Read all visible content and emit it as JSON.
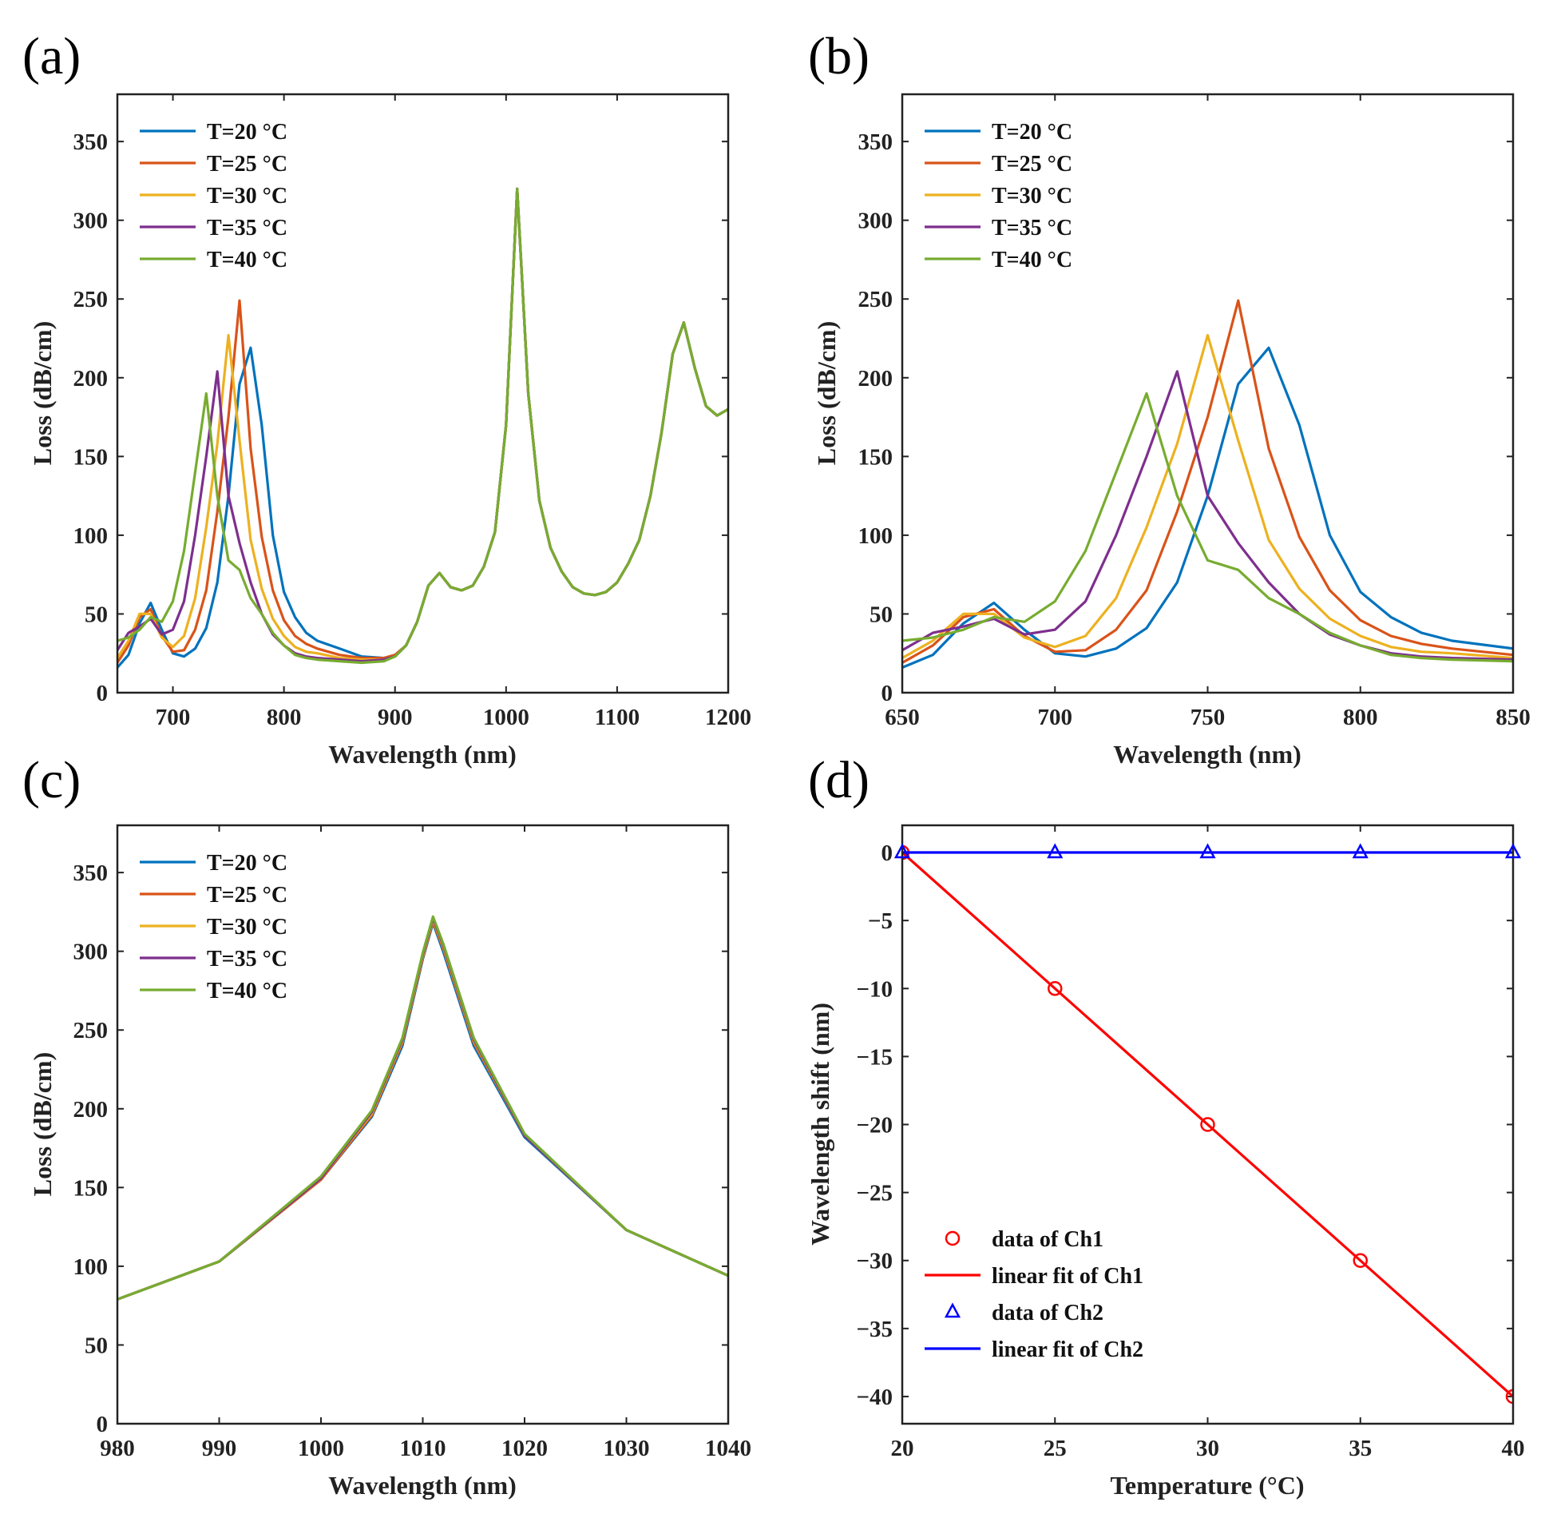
{
  "colors": [
    "#0072BD",
    "#D95319",
    "#EDB120",
    "#7E2F8E",
    "#77AC30"
  ],
  "chart_data": [
    {
      "id": "a",
      "type": "line",
      "panel_label": "(a)",
      "xlabel": "Wavelength (nm)",
      "ylabel": "Loss (dB/cm)",
      "xlim": [
        650,
        1200
      ],
      "ylim": [
        0,
        380
      ],
      "xticks": [
        700,
        800,
        900,
        1000,
        1100,
        1200
      ],
      "yticks": [
        0,
        50,
        100,
        150,
        200,
        250,
        300,
        350
      ],
      "grid": false,
      "legend": "top-left",
      "series": [
        {
          "name": "T=20 °C",
          "x": [
            650,
            660,
            670,
            680,
            690,
            700,
            710,
            720,
            730,
            740,
            750,
            760,
            770,
            780,
            790,
            800,
            810,
            820,
            830,
            850,
            870,
            890,
            900,
            910,
            920,
            930,
            940,
            950,
            960,
            970,
            980,
            990,
            1000,
            1010,
            1020,
            1030,
            1040,
            1050,
            1060,
            1070,
            1080,
            1090,
            1100,
            1110,
            1120,
            1130,
            1140,
            1150,
            1160,
            1170,
            1180,
            1190,
            1200
          ],
          "y": [
            16,
            24,
            44,
            57,
            40,
            25,
            23,
            28,
            41,
            70,
            125,
            196,
            219,
            170,
            100,
            64,
            48,
            38,
            33,
            28,
            23,
            22,
            23,
            30,
            45,
            68,
            76,
            67,
            65,
            68,
            80,
            102,
            170,
            320,
            190,
            122,
            92,
            77,
            67,
            63,
            62,
            64,
            70,
            82,
            97,
            125,
            165,
            215,
            235,
            206,
            182,
            176,
            180
          ]
        },
        {
          "name": "T=25 °C",
          "x": [
            650,
            660,
            670,
            680,
            690,
            700,
            710,
            720,
            730,
            740,
            750,
            760,
            770,
            780,
            790,
            800,
            810,
            820,
            830,
            850,
            870,
            890,
            900,
            910,
            920,
            930,
            940,
            950,
            960,
            970,
            980,
            990,
            1000,
            1010,
            1020,
            1030,
            1040,
            1050,
            1060,
            1070,
            1080,
            1090,
            1100,
            1110,
            1120,
            1130,
            1140,
            1150,
            1160,
            1170,
            1180,
            1190,
            1200
          ],
          "y": [
            19,
            30,
            48,
            53,
            36,
            26,
            27,
            40,
            65,
            115,
            175,
            249,
            155,
            99,
            65,
            46,
            36,
            31,
            28,
            24,
            22,
            22,
            24,
            30,
            45,
            68,
            76,
            67,
            65,
            68,
            80,
            102,
            170,
            320,
            190,
            122,
            92,
            77,
            67,
            63,
            62,
            64,
            70,
            82,
            97,
            125,
            165,
            215,
            235,
            206,
            182,
            176,
            180
          ]
        },
        {
          "name": "T=30 °C",
          "x": [
            650,
            660,
            670,
            680,
            690,
            700,
            710,
            720,
            730,
            740,
            750,
            760,
            770,
            780,
            790,
            800,
            810,
            820,
            830,
            850,
            870,
            890,
            900,
            910,
            920,
            930,
            940,
            950,
            960,
            970,
            980,
            990,
            1000,
            1010,
            1020,
            1030,
            1040,
            1050,
            1060,
            1070,
            1080,
            1090,
            1100,
            1110,
            1120,
            1130,
            1140,
            1150,
            1160,
            1170,
            1180,
            1190,
            1200
          ],
          "y": [
            22,
            33,
            50,
            50,
            35,
            29,
            36,
            60,
            105,
            158,
            227,
            160,
            97,
            66,
            47,
            36,
            29,
            26,
            25,
            22,
            21,
            21,
            23,
            30,
            45,
            68,
            76,
            67,
            65,
            68,
            80,
            102,
            170,
            320,
            190,
            122,
            92,
            77,
            67,
            63,
            62,
            64,
            70,
            82,
            97,
            125,
            165,
            215,
            235,
            206,
            182,
            176,
            180
          ]
        },
        {
          "name": "T=35 °C",
          "x": [
            650,
            660,
            670,
            680,
            690,
            700,
            710,
            720,
            730,
            740,
            750,
            760,
            770,
            780,
            790,
            800,
            810,
            820,
            830,
            850,
            870,
            890,
            900,
            910,
            920,
            930,
            940,
            950,
            960,
            970,
            980,
            990,
            1000,
            1010,
            1020,
            1030,
            1040,
            1050,
            1060,
            1070,
            1080,
            1090,
            1100,
            1110,
            1120,
            1130,
            1140,
            1150,
            1160,
            1170,
            1180,
            1190,
            1200
          ],
          "y": [
            27,
            38,
            42,
            47,
            37,
            40,
            58,
            100,
            150,
            204,
            125,
            95,
            70,
            50,
            37,
            30,
            25,
            23,
            22,
            21,
            20,
            21,
            23,
            30,
            45,
            68,
            76,
            67,
            65,
            68,
            80,
            102,
            170,
            320,
            190,
            122,
            92,
            77,
            67,
            63,
            62,
            64,
            70,
            82,
            97,
            125,
            165,
            215,
            235,
            206,
            182,
            176,
            180
          ]
        },
        {
          "name": "T=40 °C",
          "x": [
            650,
            660,
            670,
            680,
            690,
            700,
            710,
            720,
            730,
            740,
            750,
            760,
            770,
            780,
            790,
            800,
            810,
            820,
            830,
            850,
            870,
            890,
            900,
            910,
            920,
            930,
            940,
            950,
            960,
            970,
            980,
            990,
            1000,
            1010,
            1020,
            1030,
            1040,
            1050,
            1060,
            1070,
            1080,
            1090,
            1100,
            1110,
            1120,
            1130,
            1140,
            1150,
            1160,
            1170,
            1180,
            1190,
            1200
          ],
          "y": [
            33,
            35,
            40,
            48,
            45,
            58,
            90,
            140,
            190,
            125,
            84,
            78,
            60,
            50,
            38,
            30,
            24,
            22,
            21,
            20,
            19,
            20,
            23,
            30,
            45,
            68,
            76,
            67,
            65,
            68,
            80,
            102,
            170,
            320,
            190,
            122,
            92,
            77,
            67,
            63,
            62,
            64,
            70,
            82,
            97,
            125,
            165,
            215,
            235,
            206,
            182,
            176,
            180
          ]
        }
      ]
    },
    {
      "id": "b",
      "type": "line",
      "panel_label": "(b)",
      "xlabel": "Wavelength (nm)",
      "ylabel": "Loss (dB/cm)",
      "xlim": [
        650,
        850
      ],
      "ylim": [
        0,
        380
      ],
      "xticks": [
        650,
        700,
        750,
        800,
        850
      ],
      "yticks": [
        0,
        50,
        100,
        150,
        200,
        250,
        300,
        350
      ],
      "grid": false,
      "legend": "top-left",
      "series": [
        {
          "name": "T=20 °C",
          "x": [
            650,
            660,
            670,
            680,
            690,
            700,
            710,
            720,
            730,
            740,
            750,
            760,
            770,
            780,
            790,
            800,
            810,
            820,
            830,
            850
          ],
          "y": [
            16,
            24,
            44,
            57,
            40,
            25,
            23,
            28,
            41,
            70,
            125,
            196,
            219,
            170,
            100,
            64,
            48,
            38,
            33,
            28
          ]
        },
        {
          "name": "T=25 °C",
          "x": [
            650,
            660,
            670,
            680,
            690,
            700,
            710,
            720,
            730,
            740,
            750,
            760,
            770,
            780,
            790,
            800,
            810,
            820,
            830,
            850
          ],
          "y": [
            19,
            30,
            48,
            53,
            36,
            26,
            27,
            40,
            65,
            115,
            175,
            249,
            155,
            99,
            65,
            46,
            36,
            31,
            28,
            24
          ]
        },
        {
          "name": "T=30 °C",
          "x": [
            650,
            660,
            670,
            680,
            690,
            700,
            710,
            720,
            730,
            740,
            750,
            760,
            770,
            780,
            790,
            800,
            810,
            820,
            830,
            850
          ],
          "y": [
            22,
            33,
            50,
            50,
            35,
            29,
            36,
            60,
            105,
            158,
            227,
            160,
            97,
            66,
            47,
            36,
            29,
            26,
            25,
            22
          ]
        },
        {
          "name": "T=35 °C",
          "x": [
            650,
            660,
            670,
            680,
            690,
            700,
            710,
            720,
            730,
            740,
            750,
            760,
            770,
            780,
            790,
            800,
            810,
            820,
            830,
            850
          ],
          "y": [
            27,
            38,
            42,
            47,
            37,
            40,
            58,
            100,
            150,
            204,
            125,
            95,
            70,
            50,
            37,
            30,
            25,
            23,
            22,
            21
          ]
        },
        {
          "name": "T=40 °C",
          "x": [
            650,
            660,
            670,
            680,
            690,
            700,
            710,
            720,
            730,
            740,
            750,
            760,
            770,
            780,
            790,
            800,
            810,
            820,
            830,
            850
          ],
          "y": [
            33,
            35,
            40,
            48,
            45,
            58,
            90,
            140,
            190,
            125,
            84,
            78,
            60,
            50,
            38,
            30,
            24,
            22,
            21,
            20
          ]
        }
      ]
    },
    {
      "id": "c",
      "type": "line",
      "panel_label": "(c)",
      "xlabel": "Wavelength (nm)",
      "ylabel": "Loss (dB/cm)",
      "xlim": [
        980,
        1040
      ],
      "ylim": [
        0,
        380
      ],
      "xticks": [
        980,
        990,
        1000,
        1010,
        1020,
        1030,
        1040
      ],
      "yticks": [
        0,
        50,
        100,
        150,
        200,
        250,
        300,
        350
      ],
      "grid": false,
      "legend": "top-left",
      "series": [
        {
          "name": "T=20 °C",
          "x": [
            980,
            990,
            1000,
            1005,
            1008,
            1010,
            1011,
            1012,
            1015,
            1020,
            1030,
            1040
          ],
          "y": [
            79,
            103,
            155,
            195,
            240,
            295,
            318,
            300,
            240,
            182,
            123,
            94
          ]
        },
        {
          "name": "T=25 °C",
          "x": [
            980,
            990,
            1000,
            1005,
            1008,
            1010,
            1011,
            1012,
            1015,
            1020,
            1030,
            1040
          ],
          "y": [
            79,
            103,
            155,
            196,
            242,
            296,
            319,
            302,
            242,
            183,
            123,
            94
          ]
        },
        {
          "name": "T=30 °C",
          "x": [
            980,
            990,
            1000,
            1005,
            1008,
            1010,
            1011,
            1012,
            1015,
            1020,
            1030,
            1040
          ],
          "y": [
            79,
            103,
            156,
            197,
            243,
            297,
            320,
            303,
            243,
            183,
            123,
            94
          ]
        },
        {
          "name": "T=35 °C",
          "x": [
            980,
            990,
            1000,
            1005,
            1008,
            1010,
            1011,
            1012,
            1015,
            1020,
            1030,
            1040
          ],
          "y": [
            79,
            103,
            156,
            198,
            244,
            298,
            321,
            304,
            244,
            183,
            123,
            94
          ]
        },
        {
          "name": "T=40 °C",
          "x": [
            980,
            990,
            1000,
            1005,
            1008,
            1010,
            1011,
            1012,
            1015,
            1020,
            1030,
            1040
          ],
          "y": [
            79,
            103,
            157,
            199,
            245,
            299,
            322,
            305,
            245,
            184,
            123,
            94
          ]
        }
      ]
    },
    {
      "id": "d",
      "type": "scatter",
      "panel_label": "(d)",
      "xlabel": "Temperature (°C)",
      "ylabel": "Wavelength shift (nm)",
      "xlim": [
        20,
        40
      ],
      "ylim": [
        -42,
        2
      ],
      "xticks": [
        20,
        25,
        30,
        35,
        40
      ],
      "yticks": [
        0,
        -5,
        -10,
        -15,
        -20,
        -25,
        -30,
        -35,
        -40
      ],
      "ytick_labels": [
        "0",
        "−5",
        "−10",
        "−15",
        "−20",
        "−25",
        "−30",
        "−35",
        "−40"
      ],
      "grid": false,
      "legend": "bottom-left",
      "series": [
        {
          "name": "data of Ch1",
          "kind": "marker-circle",
          "color": "#FF0000",
          "x": [
            20,
            25,
            30,
            35,
            40
          ],
          "y": [
            0,
            -10,
            -20,
            -30,
            -40
          ]
        },
        {
          "name": "linear fit of Ch1",
          "kind": "line",
          "color": "#FF0000",
          "x": [
            20,
            40
          ],
          "y": [
            0,
            -40
          ]
        },
        {
          "name": "data of Ch2",
          "kind": "marker-triangle",
          "color": "#0000FF",
          "x": [
            20,
            25,
            30,
            35,
            40
          ],
          "y": [
            0,
            0,
            0,
            0,
            0
          ]
        },
        {
          "name": "linear fit of Ch2",
          "kind": "line",
          "color": "#0000FF",
          "x": [
            20,
            40
          ],
          "y": [
            0,
            0
          ]
        }
      ]
    }
  ]
}
